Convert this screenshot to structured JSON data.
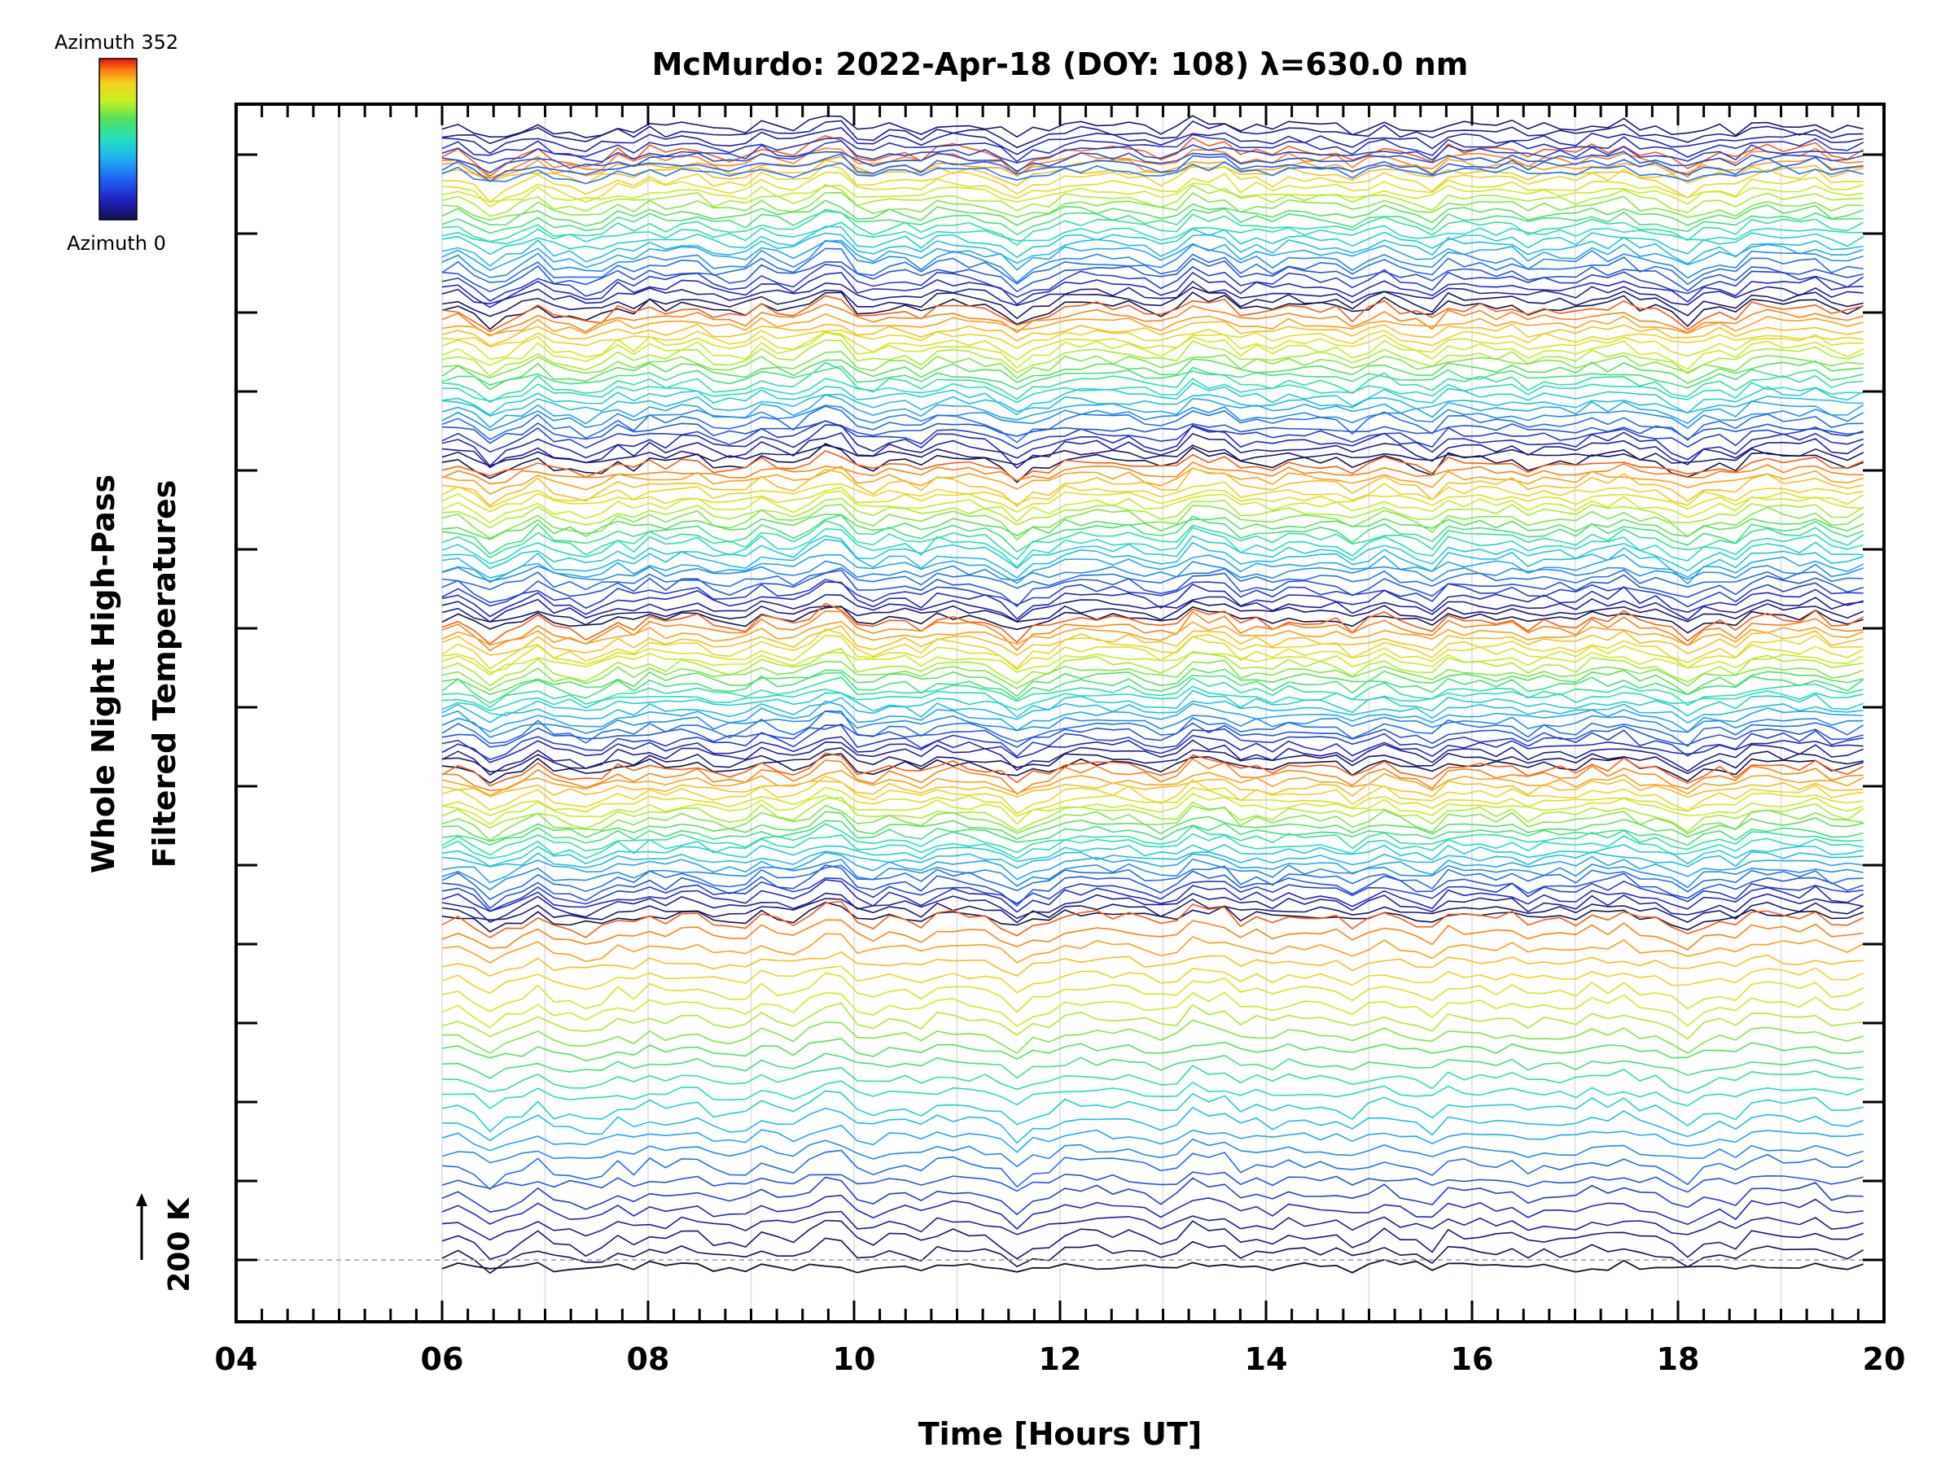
{
  "chart_data": {
    "type": "line",
    "title": "McMurdo: 2022-Apr-18 (DOY: 108) λ=630.0 nm",
    "xlabel": "Time [Hours UT]",
    "ylabel_line1": "Whole Night High-Pass",
    "ylabel_line2": "Filtered Temperatures",
    "xlim": [
      4,
      20
    ],
    "x_tick_labels": [
      "04",
      "06",
      "08",
      "10",
      "12",
      "14",
      "16",
      "18",
      "20"
    ],
    "x_major_ticks": [
      4,
      6,
      8,
      10,
      12,
      14,
      16,
      18,
      20
    ],
    "data_x_range": [
      6.0,
      19.8
    ],
    "reference_label": "200 K",
    "colorbar": {
      "top_label": "Azimuth 352",
      "bottom_label": "Azimuth 0",
      "colors": [
        "#e01010",
        "#ff7a10",
        "#f4d020",
        "#c8f020",
        "#50e060",
        "#20e0c0",
        "#20b0f0",
        "#2060f0",
        "#2020c0",
        "#101050"
      ]
    },
    "series_description_count": 140,
    "line_groups": 6,
    "grid": true,
    "legend": "colorbar top-left"
  }
}
